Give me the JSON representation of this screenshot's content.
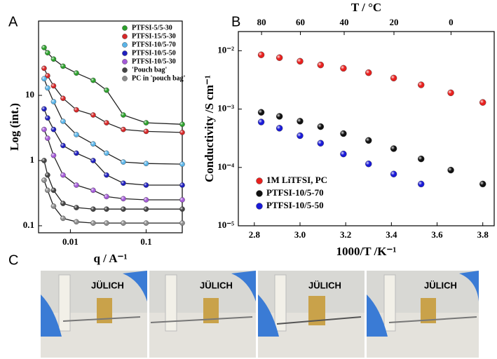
{
  "chart_data": [
    {
      "type": "scatter",
      "panel": "A",
      "xlabel": "q / A⁻¹",
      "ylabel": "Log (int.)",
      "xlog": true,
      "ylog": true,
      "xlim": [
        0.0038,
        0.3
      ],
      "ylim": [
        0.078,
        138
      ],
      "xticks": [
        0.01,
        0.1
      ],
      "yticks": [
        0.1,
        1,
        10
      ],
      "legend": "upper right",
      "fit_color": "#222222",
      "x": [
        0.0045,
        0.005,
        0.006,
        0.008,
        0.012,
        0.02,
        0.03,
        0.05,
        0.1,
        0.3
      ],
      "series": [
        {
          "name": "PTFSI-5/5-30",
          "color": "#2ca02c",
          "values": [
            54,
            45,
            36,
            28,
            22,
            17,
            12,
            5,
            3.8,
            3.6
          ]
        },
        {
          "name": "PTFSI-15/5-30",
          "color": "#d62728",
          "values": [
            26,
            20,
            14,
            9,
            6,
            5,
            3.8,
            3.0,
            2.8,
            2.7
          ]
        },
        {
          "name": "PTFSI-10/5-70",
          "color": "#5ab4e8",
          "values": [
            18,
            13,
            8,
            4,
            2.5,
            1.8,
            1.3,
            0.95,
            0.9,
            0.88
          ]
        },
        {
          "name": "PTFSI-10/5-50",
          "color": "#1f1fbf",
          "values": [
            6.2,
            4.5,
            3,
            1.7,
            1.3,
            1.0,
            0.6,
            0.45,
            0.42,
            0.42
          ]
        },
        {
          "name": "PTFSI-10/5-30",
          "color": "#a45ad8",
          "values": [
            3.0,
            2.2,
            1.2,
            0.6,
            0.42,
            0.35,
            0.28,
            0.26,
            0.25,
            0.25
          ]
        },
        {
          "name": "'Pouch bag'",
          "color": "#444444",
          "values": [
            1.0,
            0.6,
            0.35,
            0.22,
            0.19,
            0.18,
            0.18,
            0.18,
            0.18,
            0.18
          ]
        },
        {
          "name": "PC in 'pouch bag'",
          "color": "#8c8c8c",
          "values": [
            0.5,
            0.35,
            0.2,
            0.13,
            0.115,
            0.11,
            0.11,
            0.11,
            0.11,
            0.11
          ]
        }
      ]
    },
    {
      "type": "scatter",
      "panel": "B",
      "xlabel": "1000/T /K⁻¹",
      "ylabel": "Conductivity /S cm⁻¹",
      "x2label": "T / °C",
      "ylog": true,
      "xlim": [
        2.73,
        3.85
      ],
      "ylim": [
        1e-05,
        0.0213
      ],
      "xticks": [
        2.8,
        {
          "value": 3,
          "label": "3.0"
        },
        3.2,
        3.4,
        3.6,
        3.8
      ],
      "x2ticks": [
        80,
        60,
        40,
        20,
        0
      ],
      "yticks": [
        {
          "value": 1e-05,
          "label": "10⁻⁵"
        },
        {
          "value": 0.0001,
          "label": "10⁻⁴"
        },
        {
          "value": 0.001,
          "label": "10⁻³"
        },
        {
          "value": 0.01,
          "label": "10⁻²"
        }
      ],
      "legend": "lower left",
      "series": [
        {
          "name": "1M LiTFSI, PC",
          "color": "#e8201e",
          "x": [
            2.83,
            2.91,
            3.0,
            3.09,
            3.19,
            3.3,
            3.41,
            3.53,
            3.66,
            3.8
          ],
          "values": [
            0.0085,
            0.0076,
            0.0066,
            0.0057,
            0.005,
            0.0042,
            0.0034,
            0.0026,
            0.0019,
            0.0013
          ]
        },
        {
          "name": "PTFSI-10/5-70",
          "color": "#111111",
          "x": [
            2.83,
            2.91,
            3.0,
            3.09,
            3.19,
            3.3,
            3.41,
            3.53,
            3.66,
            3.8
          ],
          "values": [
            0.00088,
            0.00075,
            0.00062,
            0.0005,
            0.00038,
            0.00029,
            0.00021,
            0.00014,
            9e-05,
            5.2e-05
          ]
        },
        {
          "name": "PTFSI-10/5-50",
          "color": "#1a1ad8",
          "x": [
            2.83,
            2.91,
            3.0,
            3.09,
            3.19,
            3.3,
            3.41,
            3.53
          ],
          "values": [
            0.0006,
            0.00047,
            0.00035,
            0.00026,
            0.00017,
            0.000115,
            7.7e-05,
            5.2e-05
          ]
        }
      ]
    }
  ],
  "photos": {
    "panel": "C"
  }
}
